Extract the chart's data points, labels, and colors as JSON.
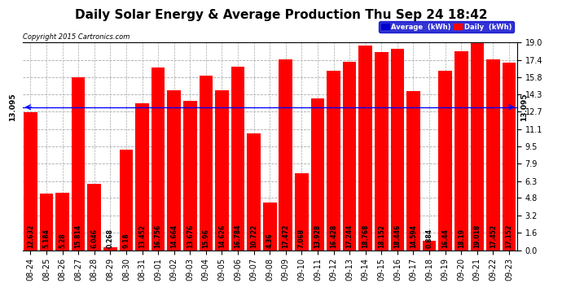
{
  "title": "Daily Solar Energy & Average Production Thu Sep 24 18:42",
  "copyright": "Copyright 2015 Cartronics.com",
  "categories": [
    "08-24",
    "08-25",
    "08-26",
    "08-27",
    "08-28",
    "08-29",
    "08-30",
    "08-31",
    "09-01",
    "09-02",
    "09-03",
    "09-04",
    "09-05",
    "09-06",
    "09-07",
    "09-08",
    "09-09",
    "09-10",
    "09-11",
    "09-12",
    "09-13",
    "09-14",
    "09-15",
    "09-16",
    "09-17",
    "09-18",
    "09-19",
    "09-20",
    "09-21",
    "09-22",
    "09-23"
  ],
  "values": [
    12.632,
    5.184,
    5.28,
    15.814,
    6.046,
    0.268,
    9.18,
    13.452,
    16.756,
    14.664,
    13.676,
    15.96,
    14.626,
    16.784,
    10.722,
    4.36,
    17.472,
    7.068,
    13.928,
    16.428,
    17.244,
    18.768,
    18.152,
    18.446,
    14.594,
    0.884,
    16.44,
    18.19,
    19.018,
    17.452,
    17.152
  ],
  "average": 13.095,
  "bar_color": "#ff0000",
  "average_line_color": "#0000ff",
  "background_color": "#ffffff",
  "plot_bg_color": "#ffffff",
  "ylim": [
    0.0,
    19.0
  ],
  "yticks": [
    0.0,
    1.6,
    3.2,
    4.8,
    6.3,
    7.9,
    9.5,
    11.1,
    12.7,
    14.3,
    15.8,
    17.4,
    19.0
  ],
  "grid_color": "#aaaaaa",
  "title_fontsize": 11,
  "tick_fontsize": 7,
  "bar_label_fontsize": 5.5,
  "legend_avg_color": "#0000cc",
  "legend_daily_color": "#ff0000",
  "legend_text_color": "#ffffff",
  "bar_width": 0.85
}
